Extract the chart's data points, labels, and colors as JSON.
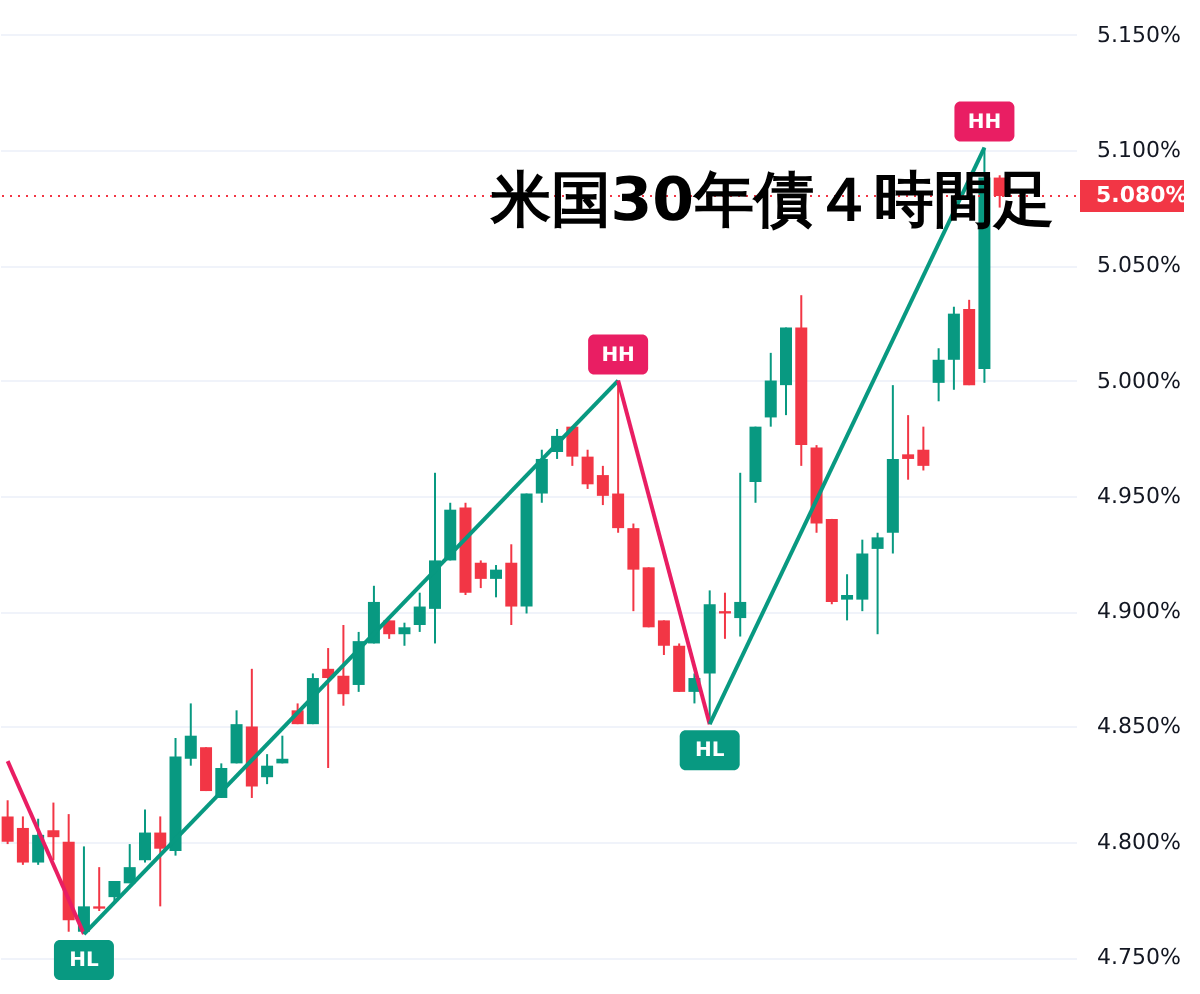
{
  "chart_data": {
    "type": "candlestick",
    "title": "米国30年債４時間足",
    "categories": [
      null,
      null,
      null,
      null,
      null,
      null,
      null,
      null,
      null,
      null,
      null,
      null,
      null,
      null,
      null,
      null,
      null,
      null,
      null,
      null,
      null,
      null,
      null,
      null,
      null,
      null,
      null,
      null,
      null,
      null,
      null,
      null,
      null,
      null,
      null,
      null,
      null,
      null,
      null,
      null,
      null,
      null,
      null,
      null,
      null,
      null,
      null,
      null,
      null,
      null,
      null,
      null,
      null,
      null,
      null,
      null,
      null,
      null,
      null,
      null,
      null,
      null,
      null,
      null,
      null,
      null
    ],
    "ohlc": [
      [
        4.811,
        4.818,
        4.799,
        4.8
      ],
      [
        4.806,
        4.811,
        4.79,
        4.791
      ],
      [
        4.791,
        4.81,
        4.79,
        4.803
      ],
      [
        4.805,
        4.817,
        4.792,
        4.802
      ],
      [
        4.8,
        4.812,
        4.761,
        4.766
      ],
      [
        4.761,
        4.798,
        4.76,
        4.772
      ],
      [
        4.772,
        4.789,
        4.77,
        4.771
      ],
      [
        4.776,
        4.783,
        4.773,
        4.783
      ],
      [
        4.782,
        4.799,
        4.782,
        4.789
      ],
      [
        4.792,
        4.814,
        4.791,
        4.804
      ],
      [
        4.804,
        4.811,
        4.772,
        4.797
      ],
      [
        4.796,
        4.845,
        4.794,
        4.837
      ],
      [
        4.836,
        4.86,
        4.833,
        4.846
      ],
      [
        4.841,
        4.841,
        4.822,
        4.822
      ],
      [
        4.819,
        4.834,
        4.819,
        4.832
      ],
      [
        4.834,
        4.857,
        4.834,
        4.851
      ],
      [
        4.85,
        4.875,
        4.819,
        4.824
      ],
      [
        4.828,
        4.838,
        4.825,
        4.833
      ],
      [
        4.834,
        4.846,
        4.834,
        4.836
      ],
      [
        4.857,
        4.86,
        4.851,
        4.851
      ],
      [
        4.851,
        4.873,
        4.851,
        4.871
      ],
      [
        4.875,
        4.884,
        4.832,
        4.871
      ],
      [
        4.872,
        4.894,
        4.859,
        4.864
      ],
      [
        4.868,
        4.891,
        4.865,
        4.887
      ],
      [
        4.886,
        4.911,
        4.886,
        4.904
      ],
      [
        4.896,
        4.896,
        4.888,
        4.89
      ],
      [
        4.89,
        4.895,
        4.885,
        4.893
      ],
      [
        4.894,
        4.908,
        4.891,
        4.902
      ],
      [
        4.901,
        4.96,
        4.886,
        4.922
      ],
      [
        4.922,
        4.947,
        4.922,
        4.944
      ],
      [
        4.945,
        4.947,
        4.907,
        4.908
      ],
      [
        4.921,
        4.922,
        4.91,
        4.914
      ],
      [
        4.914,
        4.92,
        4.906,
        4.918
      ],
      [
        4.921,
        4.929,
        4.894,
        4.902
      ],
      [
        4.902,
        4.951,
        4.899,
        4.951
      ],
      [
        4.951,
        4.97,
        4.947,
        4.966
      ],
      [
        4.969,
        4.979,
        4.966,
        4.976
      ],
      [
        4.98,
        4.98,
        4.963,
        4.967
      ],
      [
        4.967,
        4.97,
        4.953,
        4.955
      ],
      [
        4.959,
        4.963,
        4.946,
        4.95
      ],
      [
        4.951,
        5.0,
        4.934,
        4.936
      ],
      [
        4.936,
        4.938,
        4.9,
        4.918
      ],
      [
        4.919,
        4.919,
        4.893,
        4.893
      ],
      [
        4.896,
        4.896,
        4.881,
        4.885
      ],
      [
        4.885,
        4.886,
        4.865,
        4.865
      ],
      [
        4.865,
        4.873,
        4.86,
        4.871
      ],
      [
        4.873,
        4.909,
        4.851,
        4.903
      ],
      [
        4.9,
        4.908,
        4.888,
        4.899
      ],
      [
        4.897,
        4.96,
        4.889,
        4.904
      ],
      [
        4.956,
        4.98,
        4.947,
        4.98
      ],
      [
        4.984,
        5.012,
        4.98,
        5.0
      ],
      [
        4.998,
        5.023,
        4.985,
        5.023
      ],
      [
        5.023,
        5.037,
        4.963,
        4.972
      ],
      [
        4.971,
        4.972,
        4.934,
        4.938
      ],
      [
        4.94,
        4.94,
        4.903,
        4.904
      ],
      [
        4.905,
        4.916,
        4.896,
        4.907
      ],
      [
        4.905,
        4.931,
        4.9,
        4.925
      ],
      [
        4.927,
        4.934,
        4.89,
        4.932
      ],
      [
        4.934,
        4.998,
        4.925,
        4.966
      ],
      [
        4.968,
        4.985,
        4.957,
        4.966
      ],
      [
        4.97,
        4.98,
        4.961,
        4.963
      ],
      [
        4.999,
        5.014,
        4.991,
        5.009
      ],
      [
        5.009,
        5.032,
        4.996,
        5.029
      ],
      [
        5.031,
        5.035,
        4.998,
        4.998
      ],
      [
        5.005,
        5.101,
        4.999,
        5.088
      ],
      [
        5.088,
        5.089,
        5.075,
        5.08
      ]
    ],
    "colors": [
      "#f23645",
      "#f23645",
      "#089981",
      "#f23645",
      "#f23645",
      "#089981",
      "#f23645",
      "#089981",
      "#089981",
      "#089981",
      "#f23645",
      "#089981",
      "#089981",
      "#f23645",
      "#089981",
      "#089981",
      "#f23645",
      "#089981",
      "#089981",
      "#f23645",
      "#089981",
      "#f23645",
      "#f23645",
      "#089981",
      "#089981",
      "#f23645",
      "#089981",
      "#089981",
      "#089981",
      "#089981",
      "#f23645",
      "#f23645",
      "#089981",
      "#f23645",
      "#089981",
      "#089981",
      "#089981",
      "#f23645",
      "#f23645",
      "#f23645",
      "#f23645",
      "#f23645",
      "#f23645",
      "#f23645",
      "#f23645",
      "#089981",
      "#089981",
      "#f23645",
      "#089981",
      "#089981",
      "#089981",
      "#089981",
      "#f23645",
      "#f23645",
      "#f23645",
      "#089981",
      "#089981",
      "#089981",
      "#089981",
      "#f23645",
      "#f23645",
      "#089981",
      "#089981",
      "#f23645",
      "#089981",
      "#f23645"
    ],
    "series": [
      {
        "type": "line",
        "color": "#e91e63",
        "values": [
          4.835,
          null,
          null,
          null,
          null,
          4.76,
          null,
          null,
          null,
          null,
          null,
          null,
          null,
          null,
          null,
          null,
          null,
          null,
          null,
          null,
          null,
          null,
          null,
          null,
          null,
          null,
          null,
          null,
          null,
          null,
          null,
          null,
          null,
          null,
          null,
          null,
          null,
          null,
          null,
          null,
          null,
          null,
          null,
          null,
          null,
          null,
          null,
          null,
          null,
          null,
          null,
          null,
          null,
          null,
          null,
          null,
          null,
          null,
          null,
          null,
          null,
          null,
          null,
          null,
          null,
          null
        ]
      },
      {
        "type": "line",
        "color": "#089981",
        "values": [
          null,
          null,
          null,
          null,
          null,
          4.76,
          null,
          null,
          null,
          null,
          null,
          null,
          null,
          null,
          null,
          null,
          null,
          null,
          null,
          null,
          null,
          null,
          null,
          null,
          null,
          null,
          null,
          null,
          null,
          null,
          null,
          null,
          null,
          null,
          null,
          null,
          null,
          null,
          null,
          null,
          5.0,
          null,
          null,
          null,
          null,
          null,
          null,
          null,
          null,
          null,
          null,
          null,
          null,
          null,
          null,
          null,
          null,
          null,
          null,
          null,
          null,
          null,
          null,
          null,
          null,
          null
        ]
      },
      {
        "type": "line",
        "color": "#e91e63",
        "values": [
          null,
          null,
          null,
          null,
          null,
          null,
          null,
          null,
          null,
          null,
          null,
          null,
          null,
          null,
          null,
          null,
          null,
          null,
          null,
          null,
          null,
          null,
          null,
          null,
          null,
          null,
          null,
          null,
          null,
          null,
          null,
          null,
          null,
          null,
          null,
          null,
          null,
          null,
          null,
          null,
          5.0,
          null,
          null,
          null,
          null,
          null,
          4.851,
          null,
          null,
          null,
          null,
          null,
          null,
          null,
          null,
          null,
          null,
          null,
          null,
          null,
          null,
          null,
          null,
          null,
          null,
          null
        ]
      },
      {
        "type": "line",
        "color": "#089981",
        "values": [
          null,
          null,
          null,
          null,
          null,
          null,
          null,
          null,
          null,
          null,
          null,
          null,
          null,
          null,
          null,
          null,
          null,
          null,
          null,
          null,
          null,
          null,
          null,
          null,
          null,
          null,
          null,
          null,
          null,
          null,
          null,
          null,
          null,
          null,
          null,
          null,
          null,
          null,
          null,
          null,
          null,
          null,
          null,
          null,
          null,
          null,
          4.851,
          null,
          null,
          null,
          null,
          null,
          null,
          null,
          null,
          null,
          null,
          null,
          null,
          null,
          null,
          null,
          null,
          null,
          5.101,
          null
        ]
      }
    ],
    "ylim": [
      4.734,
      5.165
    ],
    "yticks": [
      {
        "value": 4.75,
        "label": "4.750%"
      },
      {
        "value": 4.8,
        "label": "4.800%"
      },
      {
        "value": 4.85,
        "label": "4.850%"
      },
      {
        "value": 4.9,
        "label": "4.900%"
      },
      {
        "value": 4.95,
        "label": "4.950%"
      },
      {
        "value": 5.0,
        "label": "5.000%"
      },
      {
        "value": 5.05,
        "label": "5.050%"
      },
      {
        "value": 5.1,
        "label": "5.100%"
      },
      {
        "value": 5.15,
        "label": "5.150%"
      }
    ],
    "tick_labels": "y",
    "grid": "y",
    "annotations": [
      {
        "text": "HL",
        "y": 4.76
      },
      {
        "text": "HH",
        "y": 5.0
      },
      {
        "text": "HL",
        "y": 4.851
      },
      {
        "text": "HH",
        "y": 5.101
      }
    ],
    "ref_lines": [
      {
        "axis": "y",
        "value": 5.08,
        "label": "5.080%",
        "color": "#f23645",
        "line_style": "dotted"
      }
    ]
  }
}
